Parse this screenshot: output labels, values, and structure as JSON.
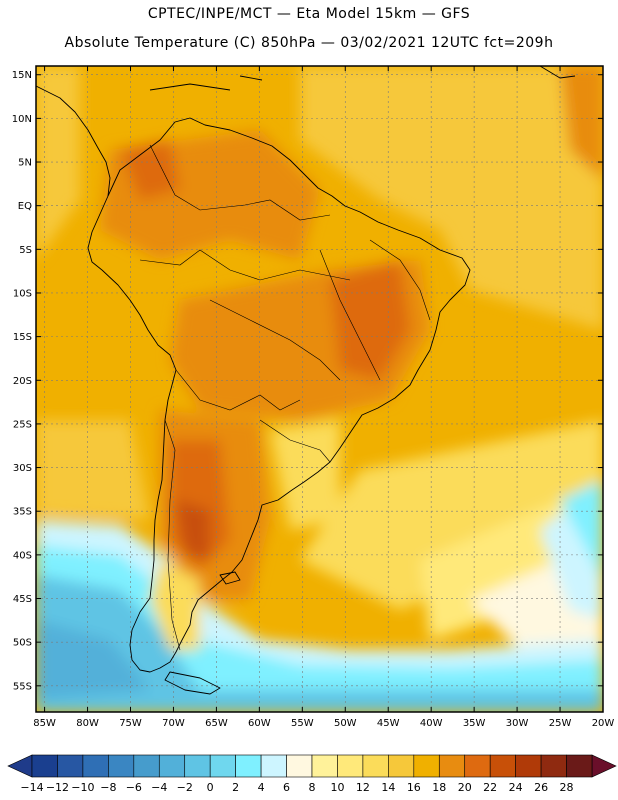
{
  "title": {
    "line1": "CPTEC/INPE/MCT —  Eta Model 15km — GFS",
    "line2": "Absolute Temperature (C) 850hPa — 03/02/2021 12UTC fct=209h"
  },
  "map": {
    "lat_labels": [
      "15N",
      "10N",
      "5N",
      "EQ",
      "5S",
      "10S",
      "15S",
      "20S",
      "25S",
      "30S",
      "35S",
      "40S",
      "45S",
      "50S",
      "55S"
    ],
    "lon_labels": [
      "85W",
      "80W",
      "75W",
      "70W",
      "65W",
      "60W",
      "55W",
      "50W",
      "45W",
      "40W",
      "35W",
      "30W",
      "25W",
      "20W"
    ],
    "lat_range": [
      -58,
      16
    ],
    "lon_range": [
      -86,
      -20
    ]
  },
  "colorbar": {
    "labels": [
      "-14",
      "-12",
      "-10",
      "-8",
      "-6",
      "-4",
      "-2",
      "0",
      "2",
      "4",
      "6",
      "8",
      "10",
      "12",
      "14",
      "16",
      "18",
      "20",
      "22",
      "24",
      "26",
      "28"
    ],
    "colors": [
      "#1a3f8f",
      "#2757a3",
      "#2f6fb5",
      "#3a86c2",
      "#469ccc",
      "#52b0d9",
      "#5fc4e4",
      "#6fd7ee",
      "#7ff0ff",
      "#cdf5ff",
      "#fff8e0",
      "#fff29a",
      "#ffe97a",
      "#fbdc5a",
      "#f6c83a",
      "#f0b000",
      "#e88c10",
      "#de6a10",
      "#c85008",
      "#b03a08",
      "#8f2a10",
      "#6a1a18"
    ],
    "low_arrow_color": "#1f3b8a",
    "high_arrow_color": "#6a0f2a"
  }
}
